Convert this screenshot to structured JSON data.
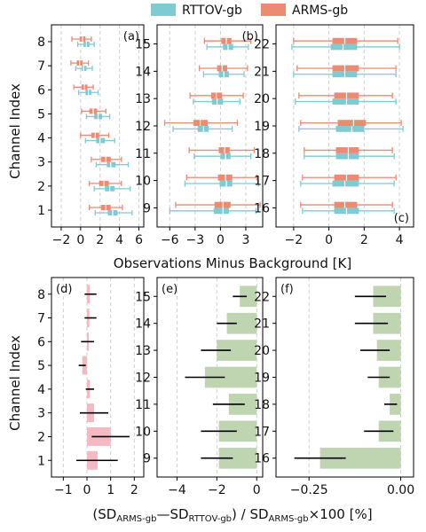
{
  "legend": [
    {
      "name": "RTTOV-gb",
      "color": "#7ecbd3"
    },
    {
      "name": "ARMS-gb",
      "color": "#ec8a72"
    }
  ],
  "top_xlabel": "Observations Minus Background [K]",
  "bottom_xlabel": {
    "a": "(SD",
    "b": "ARMS-gb",
    "c": "—SD",
    "d": "RTTOV-gb",
    "e": ") / SD",
    "f": "ARMS-gb",
    "g": "×100 [%]"
  },
  "ylabel": "Channel Index",
  "chart_data": [
    {
      "panel": "(a)",
      "type": "boxplot",
      "xlim": [
        -3,
        6.5
      ],
      "xticks": [
        -2,
        0,
        2,
        4,
        6
      ],
      "tick_labels": [
        "−2",
        "0",
        "2",
        "4",
        "6"
      ],
      "channels": [
        1,
        2,
        3,
        4,
        5,
        6,
        7,
        8
      ],
      "series": [
        {
          "name": "RTTOV-gb",
          "boxes": [
            [
              1.5,
              3.3,
              5.3,
              2.8,
              3.8
            ],
            [
              1.4,
              3.0,
              5.1,
              2.5,
              3.5
            ],
            [
              1.6,
              3.1,
              4.9,
              2.7,
              3.6
            ],
            [
              0.5,
              2.0,
              3.5,
              1.6,
              2.5
            ],
            [
              0.6,
              1.8,
              3.0,
              1.4,
              2.2
            ],
            [
              -0.2,
              0.8,
              1.8,
              0.5,
              1.1
            ],
            [
              -0.5,
              0.3,
              1.2,
              0.1,
              0.6
            ],
            [
              -0.3,
              0.6,
              1.4,
              0.3,
              0.9
            ]
          ]
        },
        {
          "name": "ARMS-gb",
          "boxes": [
            [
              0.9,
              2.6,
              4.3,
              2.1,
              3.1
            ],
            [
              0.9,
              2.4,
              4.2,
              1.9,
              2.9
            ],
            [
              1.1,
              2.6,
              4.2,
              2.1,
              3.1
            ],
            [
              0.0,
              1.5,
              2.9,
              1.1,
              1.9
            ],
            [
              0.1,
              1.3,
              2.6,
              0.9,
              1.7
            ],
            [
              -0.7,
              0.4,
              1.3,
              0.1,
              0.7
            ],
            [
              -1.0,
              -0.1,
              0.8,
              -0.4,
              0.2
            ],
            [
              -0.9,
              0.2,
              1.1,
              -0.1,
              0.5
            ]
          ]
        }
      ]
    },
    {
      "panel": "(b)",
      "type": "boxplot",
      "xlim": [
        -7.5,
        5
      ],
      "xticks": [
        -6,
        -3,
        0,
        3
      ],
      "tick_labels": [
        "−6",
        "−3",
        "0",
        "3"
      ],
      "channels": [
        9,
        10,
        11,
        12,
        13,
        14,
        15
      ],
      "series": [
        {
          "name": "RTTOV-gb",
          "boxes": [
            [
              -6.0,
              0.3,
              4.2,
              -0.8,
              1.0
            ],
            [
              -4.2,
              0.7,
              4.5,
              -0.1,
              1.4
            ],
            [
              -3.1,
              0.6,
              3.6,
              0.0,
              1.2
            ],
            [
              -5.6,
              -2.0,
              1.4,
              -2.7,
              -1.4
            ],
            [
              -3.2,
              -0.4,
              2.3,
              -1.0,
              0.3
            ],
            [
              -2.0,
              0.4,
              2.8,
              -0.2,
              1.0
            ],
            [
              -1.6,
              0.9,
              3.3,
              0.3,
              1.5
            ]
          ]
        },
        {
          "name": "ARMS-gb",
          "boxes": [
            [
              -5.3,
              0.3,
              4.7,
              -0.7,
              1.2
            ],
            [
              -4.0,
              0.6,
              4.3,
              -0.3,
              1.4
            ],
            [
              -3.7,
              0.5,
              4.0,
              -0.2,
              1.1
            ],
            [
              -6.6,
              -2.4,
              2.0,
              -3.2,
              -1.5
            ],
            [
              -3.6,
              -0.5,
              2.7,
              -1.1,
              0.2
            ],
            [
              -2.5,
              0.2,
              3.2,
              -0.4,
              0.8
            ],
            [
              -1.9,
              0.7,
              3.6,
              0.1,
              1.3
            ]
          ]
        }
      ]
    },
    {
      "panel": "(c)",
      "type": "boxplot",
      "xlim": [
        -3,
        4.8
      ],
      "xticks": [
        -2,
        0,
        2,
        4
      ],
      "tick_labels": [
        "−2",
        "0",
        "2",
        "4"
      ],
      "channels": [
        16,
        17,
        18,
        19,
        20,
        21,
        22
      ],
      "series": [
        {
          "name": "RTTOV-gb",
          "boxes": [
            [
              -1.5,
              1.0,
              3.7,
              0.3,
              1.7
            ],
            [
              -1.6,
              0.9,
              3.7,
              0.2,
              1.7
            ],
            [
              -1.4,
              1.1,
              3.7,
              0.4,
              1.7
            ],
            [
              -1.7,
              1.3,
              4.2,
              0.4,
              2.0
            ],
            [
              -1.9,
              1.0,
              3.8,
              0.2,
              1.7
            ],
            [
              -2.0,
              0.9,
              3.8,
              0.2,
              1.6
            ],
            [
              -2.1,
              0.8,
              4.0,
              0.1,
              1.6
            ]
          ]
        },
        {
          "name": "ARMS-gb",
          "boxes": [
            [
              -1.6,
              0.9,
              3.6,
              0.3,
              1.6
            ],
            [
              -1.5,
              1.0,
              3.8,
              0.3,
              1.7
            ],
            [
              -1.4,
              1.1,
              3.6,
              0.4,
              1.7
            ],
            [
              -1.6,
              1.4,
              4.1,
              0.5,
              2.1
            ],
            [
              -1.7,
              1.0,
              3.6,
              0.3,
              1.7
            ],
            [
              -1.8,
              0.9,
              3.8,
              0.2,
              1.7
            ],
            [
              -2.0,
              0.9,
              3.9,
              0.2,
              1.6
            ]
          ]
        }
      ]
    },
    {
      "panel": "(d)",
      "type": "bar",
      "orientation": "horizontal",
      "color": "#f4b9c3",
      "xlim": [
        -1.5,
        2.4
      ],
      "xticks": [
        -1,
        0,
        1,
        2
      ],
      "tick_labels": [
        "−1",
        "0",
        "1",
        "2"
      ],
      "channels": [
        1,
        2,
        3,
        4,
        5,
        6,
        7,
        8
      ],
      "values": [
        0.45,
        1.0,
        0.3,
        0.12,
        -0.2,
        0.08,
        0.1,
        0.12
      ],
      "error": [
        [
          -0.45,
          1.3
        ],
        [
          0.2,
          1.8
        ],
        [
          -0.3,
          0.9
        ],
        [
          -0.05,
          0.3
        ],
        [
          -0.35,
          -0.05
        ],
        [
          -0.25,
          0.3
        ],
        [
          -0.1,
          0.4
        ],
        [
          -0.1,
          0.4
        ]
      ]
    },
    {
      "panel": "(e)",
      "type": "bar",
      "orientation": "horizontal",
      "color": "#bfd4b0",
      "xlim": [
        -5.0,
        0.3
      ],
      "xticks": [
        -4,
        -2,
        0
      ],
      "tick_labels": [
        "−4",
        "−2",
        "0"
      ],
      "channels": [
        9,
        10,
        11,
        12,
        13,
        14,
        15
      ],
      "values": [
        -1.9,
        -1.9,
        -1.4,
        -2.6,
        -2.0,
        -1.5,
        -0.85
      ],
      "error": [
        [
          -2.8,
          -1.2
        ],
        [
          -2.8,
          -1.0
        ],
        [
          -2.2,
          -0.6
        ],
        [
          -3.6,
          -1.6
        ],
        [
          -2.8,
          -1.3
        ],
        [
          -2.0,
          -1.0
        ],
        [
          -1.2,
          -0.5
        ]
      ]
    },
    {
      "panel": "(f)",
      "type": "bar",
      "orientation": "horizontal",
      "color": "#bfd4b0",
      "xlim": [
        -0.34,
        0.035
      ],
      "xticks": [
        -0.25,
        0.0
      ],
      "tick_labels": [
        "−0.25",
        "0.00"
      ],
      "channels": [
        16,
        17,
        18,
        19,
        20,
        21,
        22
      ],
      "values": [
        -0.22,
        -0.06,
        -0.03,
        -0.06,
        -0.065,
        -0.075,
        -0.075
      ],
      "error": [
        [
          -0.29,
          -0.15
        ],
        [
          -0.1,
          -0.02
        ],
        [
          -0.045,
          -0.01
        ],
        [
          -0.09,
          -0.03
        ],
        [
          -0.11,
          -0.03
        ],
        [
          -0.125,
          -0.035
        ],
        [
          -0.125,
          -0.04
        ]
      ]
    }
  ]
}
